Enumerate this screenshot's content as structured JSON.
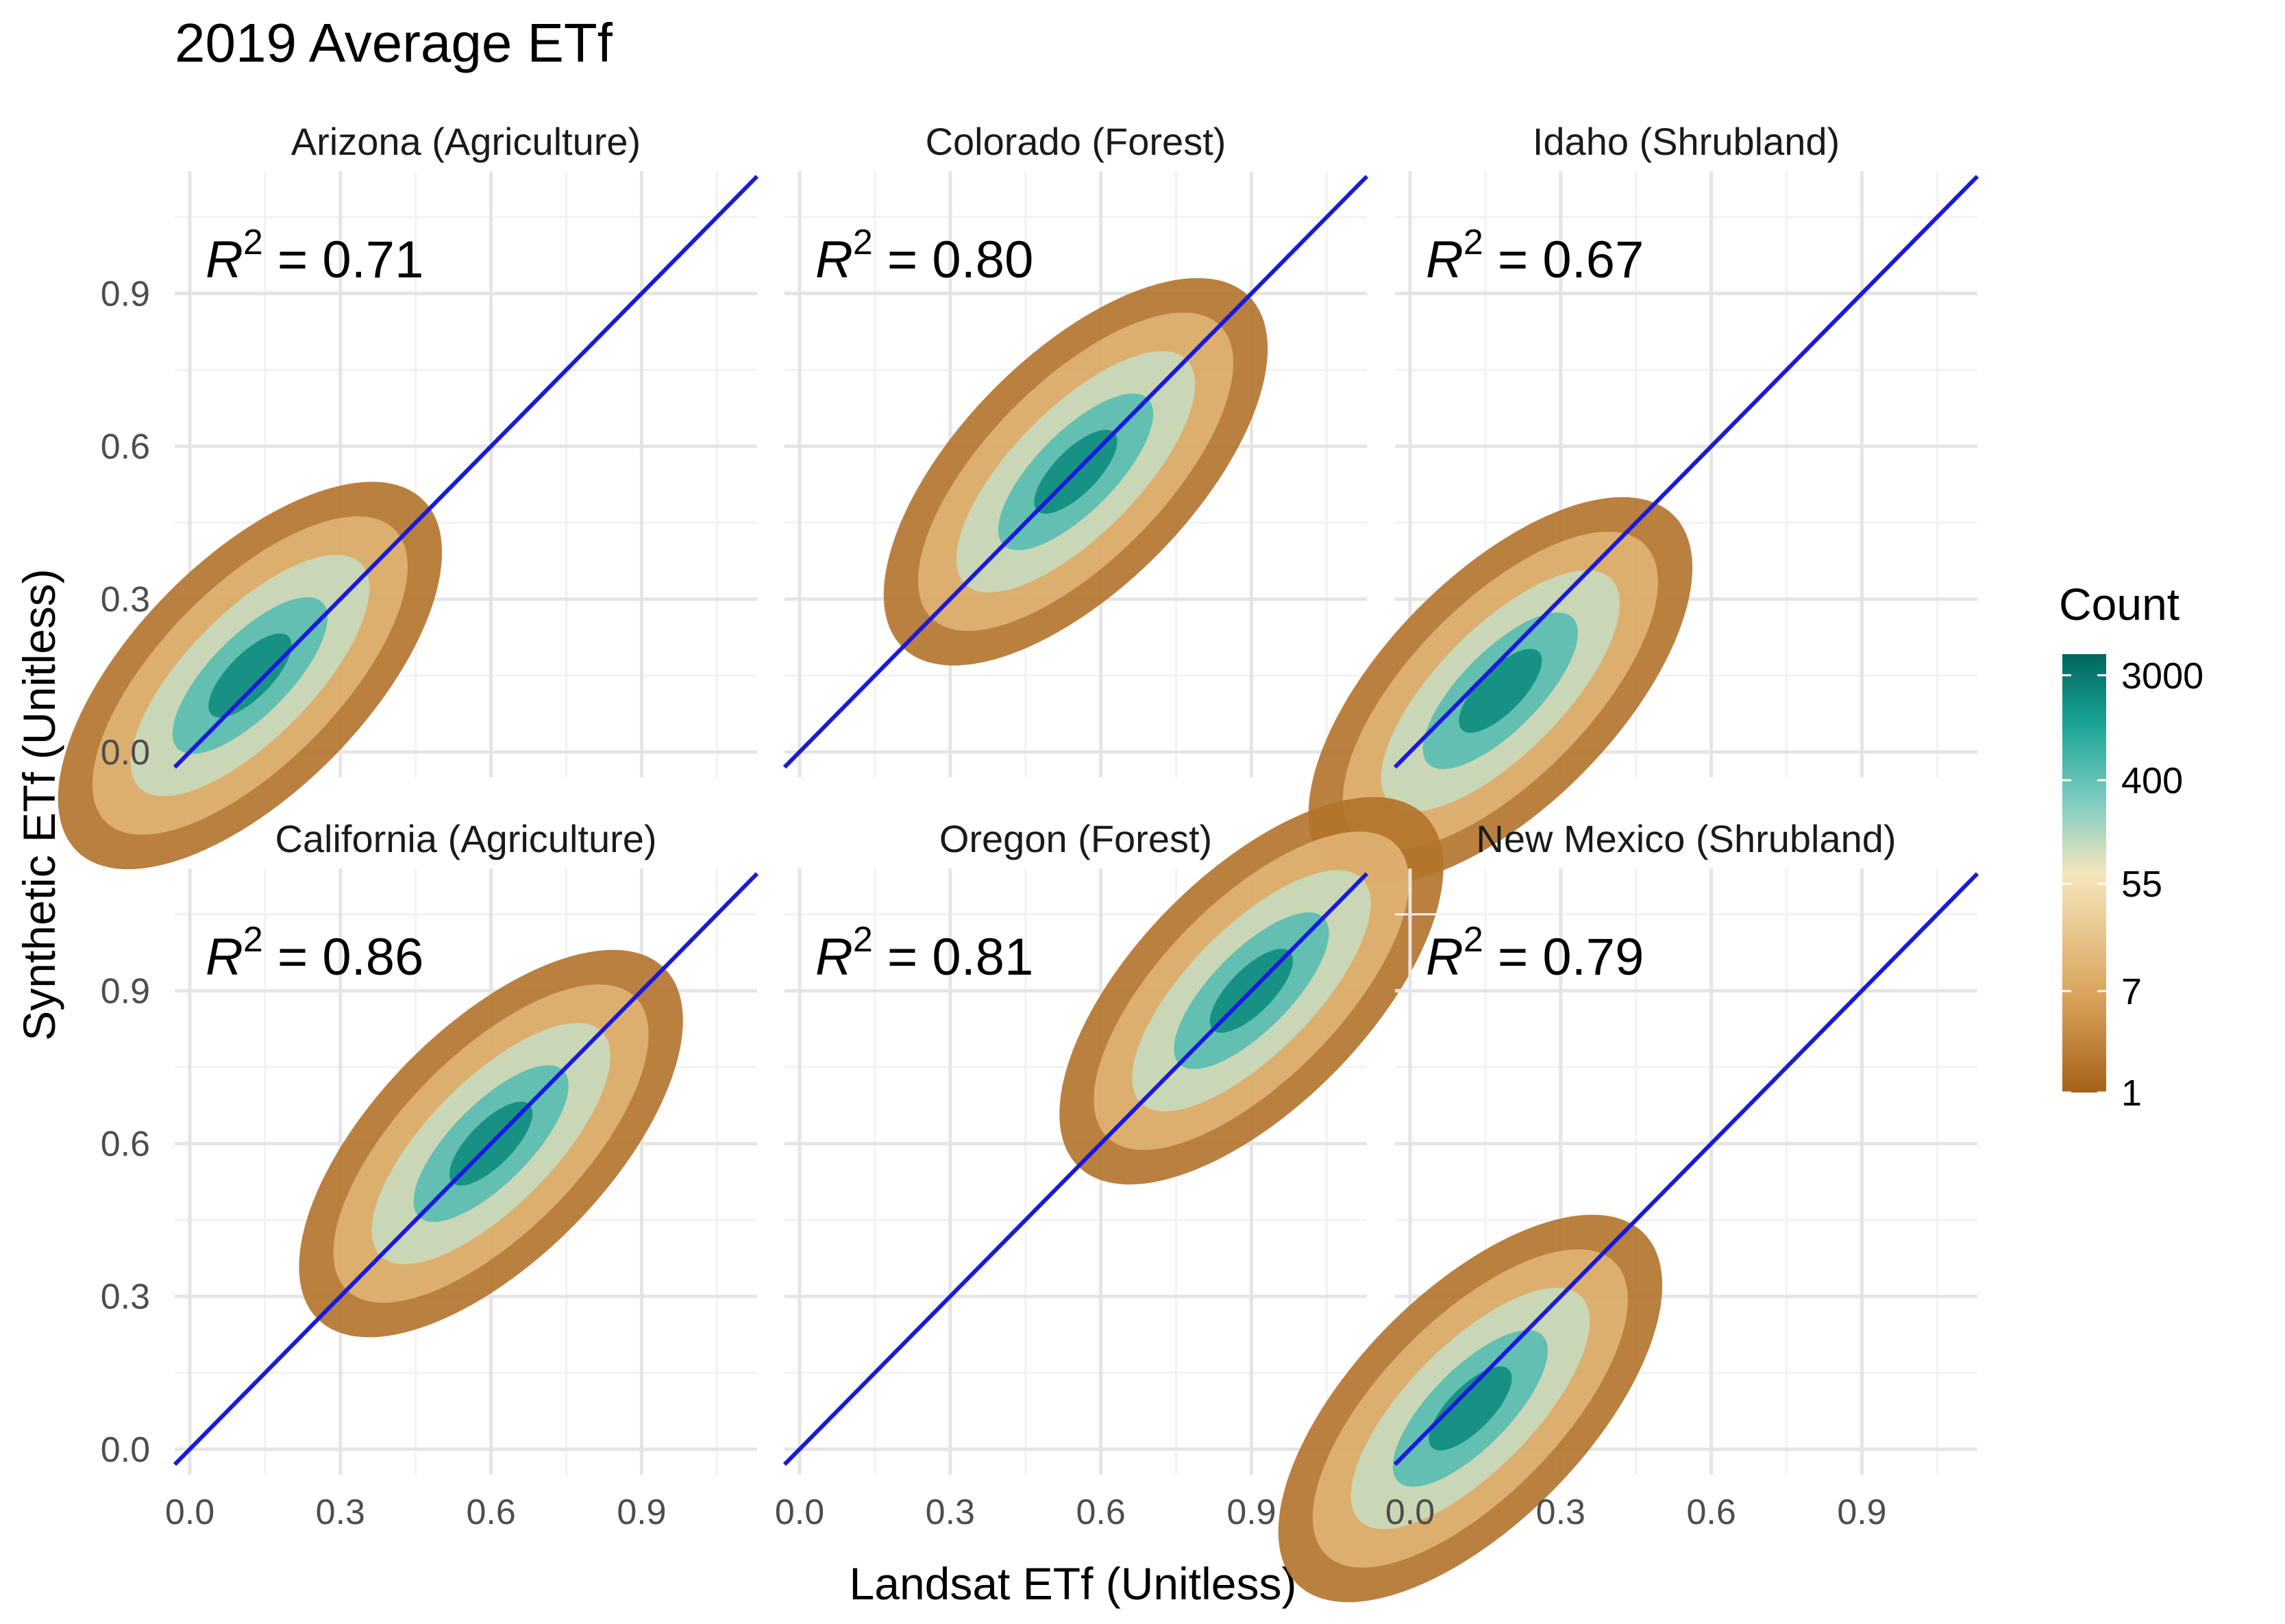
{
  "chart_data": {
    "type": "heatmap",
    "title": "2019 Average ETf",
    "xlabel": "Landsat ETf (Unitless)",
    "ylabel": "Synthetic ETf (Unitless)",
    "xlim": [
      -0.03,
      1.13
    ],
    "ylim": [
      -0.05,
      1.14
    ],
    "x_ticks": [
      0.0,
      0.3,
      0.6,
      0.9
    ],
    "y_ticks": [
      0.0,
      0.3,
      0.6,
      0.9
    ],
    "x_tick_labels": [
      "0.0",
      "0.3",
      "0.6",
      "0.9"
    ],
    "y_tick_labels": [
      "0.0",
      "0.3",
      "0.6",
      "0.9"
    ],
    "reference_line": {
      "slope": 1,
      "intercept": 0,
      "color": "#1a1adb"
    },
    "legend": {
      "title": "Count",
      "placement": "right",
      "scale": "log",
      "breaks": [
        3000,
        400,
        55,
        7,
        1
      ],
      "break_labels": [
        "3000",
        "400",
        "55",
        "7",
        "1"
      ],
      "colors": [
        "#a6611a",
        "#d9a35a",
        "#f5e6bc",
        "#80cdc1",
        "#1aa596",
        "#01665e"
      ]
    },
    "r2_prefix": "R",
    "r2_superscript": "2",
    "r2_equals": " = ",
    "panels": [
      {
        "label": "Arizona (Agriculture)",
        "r2": "0.71",
        "density_peak": [
          0.12,
          0.15
        ]
      },
      {
        "label": "Colorado (Forest)",
        "r2": "0.80",
        "density_peak": [
          0.55,
          0.55
        ]
      },
      {
        "label": "Idaho (Shrubland)",
        "r2": "0.67",
        "density_peak": [
          0.18,
          0.12
        ]
      },
      {
        "label": "California (Agriculture)",
        "r2": "0.86",
        "density_peak": [
          0.6,
          0.6
        ]
      },
      {
        "label": "Oregon (Forest)",
        "r2": "0.81",
        "density_peak": [
          0.9,
          0.9
        ]
      },
      {
        "label": "New Mexico (Shrubland)",
        "r2": "0.79",
        "density_peak": [
          0.12,
          0.08
        ]
      }
    ]
  }
}
